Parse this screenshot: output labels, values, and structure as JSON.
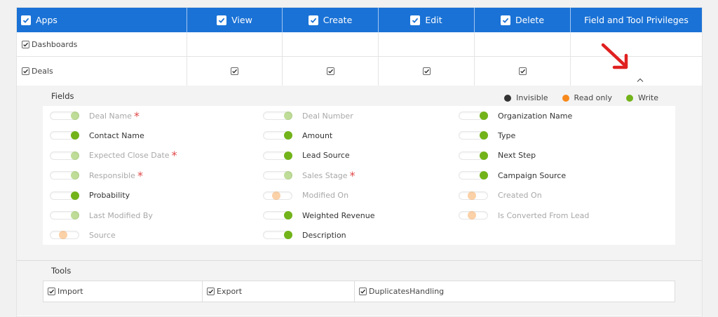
{
  "header": {
    "apps": "Apps",
    "view": "View",
    "create": "Create",
    "edit": "Edit",
    "delete": "Delete",
    "privileges": "Field and Tool Privileges"
  },
  "rows": [
    {
      "app": "Dashboards"
    },
    {
      "app": "Deals"
    }
  ],
  "fields_section": {
    "title": "Fields",
    "legend": {
      "invisible": "Invisible",
      "read_only": "Read only",
      "write": "Write"
    },
    "columns": [
      [
        {
          "label": "Deal Name",
          "state": "write",
          "dim": true,
          "required": true
        },
        {
          "label": "Contact Name",
          "state": "write",
          "dim": false,
          "required": false
        },
        {
          "label": "Expected Close Date",
          "state": "write",
          "dim": true,
          "required": true
        },
        {
          "label": "Responsible",
          "state": "write",
          "dim": true,
          "required": true
        },
        {
          "label": "Probability",
          "state": "write",
          "dim": false,
          "required": false
        },
        {
          "label": "Last Modified By",
          "state": "write",
          "dim": true,
          "required": false
        },
        {
          "label": "Source",
          "state": "read",
          "dim": true,
          "required": false
        }
      ],
      [
        {
          "label": "Deal Number",
          "state": "write",
          "dim": true,
          "required": false
        },
        {
          "label": "Amount",
          "state": "write",
          "dim": false,
          "required": false
        },
        {
          "label": "Lead Source",
          "state": "write",
          "dim": false,
          "required": false
        },
        {
          "label": "Sales Stage",
          "state": "write",
          "dim": true,
          "required": true
        },
        {
          "label": "Modified On",
          "state": "read",
          "dim": true,
          "required": false
        },
        {
          "label": "Weighted Revenue",
          "state": "write",
          "dim": false,
          "required": false
        },
        {
          "label": "Description",
          "state": "write",
          "dim": false,
          "required": false
        }
      ],
      [
        {
          "label": "Organization Name",
          "state": "write",
          "dim": false,
          "required": false
        },
        {
          "label": "Type",
          "state": "write",
          "dim": false,
          "required": false
        },
        {
          "label": "Next Step",
          "state": "write",
          "dim": false,
          "required": false
        },
        {
          "label": "Campaign Source",
          "state": "write",
          "dim": false,
          "required": false
        },
        {
          "label": "Created On",
          "state": "read",
          "dim": true,
          "required": false
        },
        {
          "label": "Is Converted From Lead",
          "state": "read",
          "dim": true,
          "required": false
        }
      ]
    ]
  },
  "tools_section": {
    "title": "Tools",
    "items": [
      {
        "label": "Import",
        "checked": true
      },
      {
        "label": "Export",
        "checked": true
      },
      {
        "label": "DuplicatesHandling",
        "checked": true
      }
    ]
  },
  "colors": {
    "header_blue": "#1a72d6",
    "write_green": "#72b31a",
    "read_orange": "#f79a3e",
    "invisible_dark": "#333333",
    "arrow_red": "#e02020"
  },
  "icons": [
    "checkbox-checked-icon",
    "chevron-up-icon",
    "red-arrow-annotation"
  ]
}
